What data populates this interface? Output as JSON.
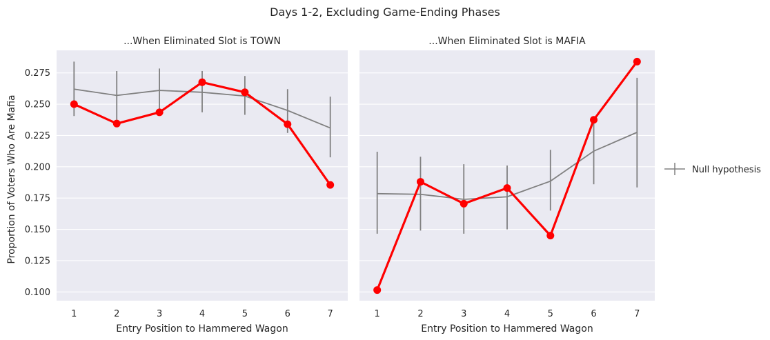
{
  "figure": {
    "suptitle": "Days 1-2, Excluding Game-Ending Phases",
    "ylabel": "Proportion of Voters Who Are Mafia",
    "legend_label": "Null hypothesis"
  },
  "colors": {
    "background": "#eaeaf2",
    "grid": "#ffffff",
    "observed": "#ff0000",
    "null": "#808080",
    "text": "#262626"
  },
  "chart_data": [
    {
      "type": "line",
      "title": "...When Eliminated Slot is TOWN",
      "xlabel": "Entry Position to Hammered Wagon",
      "ylabel": "Proportion of Voters Who Are Mafia",
      "x": [
        1,
        2,
        3,
        4,
        5,
        6,
        7
      ],
      "ylim": [
        0.093,
        0.293
      ],
      "yticks": [
        0.1,
        0.125,
        0.15,
        0.175,
        0.2,
        0.225,
        0.25,
        0.275
      ],
      "ytick_labels": [
        "0.100",
        "0.125",
        "0.150",
        "0.175",
        "0.200",
        "0.225",
        "0.250",
        "0.275"
      ],
      "grid": true,
      "series": [
        {
          "values": [
            0.25,
            0.2345,
            0.2435,
            0.2675,
            0.2595,
            0.234,
            0.1855
          ],
          "style": "line-markers",
          "color": "#ff0000"
        },
        {
          "name": "Null hypothesis",
          "values": [
            0.262,
            0.257,
            0.261,
            0.2595,
            0.2565,
            0.245,
            0.231
          ],
          "error_low": [
            0.2405,
            0.2375,
            0.2425,
            0.2435,
            0.2415,
            0.227,
            0.2075
          ],
          "error_high": [
            0.284,
            0.2765,
            0.2785,
            0.2765,
            0.2725,
            0.262,
            0.256
          ],
          "style": "line-errorbars",
          "color": "#808080"
        }
      ]
    },
    {
      "type": "line",
      "title": "...When Eliminated Slot is MAFIA",
      "xlabel": "Entry Position to Hammered Wagon",
      "x": [
        1,
        2,
        3,
        4,
        5,
        6,
        7
      ],
      "ylim": [
        0.093,
        0.293
      ],
      "grid": true,
      "series": [
        {
          "values": [
            0.1015,
            0.188,
            0.1705,
            0.183,
            0.145,
            0.2375,
            0.284
          ],
          "style": "line-markers",
          "color": "#ff0000"
        },
        {
          "name": "Null hypothesis",
          "values": [
            0.1785,
            0.178,
            0.174,
            0.176,
            0.1885,
            0.2125,
            0.2275
          ],
          "error_low": [
            0.1465,
            0.149,
            0.1465,
            0.15,
            0.165,
            0.186,
            0.1835
          ],
          "error_high": [
            0.212,
            0.208,
            0.202,
            0.201,
            0.2135,
            0.2395,
            0.271
          ],
          "style": "line-errorbars",
          "color": "#808080"
        }
      ]
    }
  ]
}
